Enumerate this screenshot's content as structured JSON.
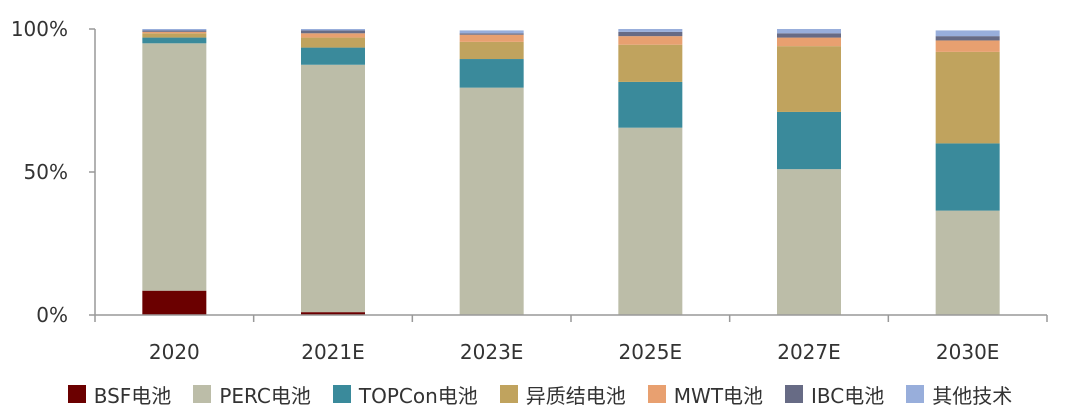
{
  "chart_data": {
    "type": "bar",
    "stacked": true,
    "percent": true,
    "categories": [
      "2020",
      "2021E",
      "2023E",
      "2025E",
      "2027E",
      "2030E"
    ],
    "y_ticks": [
      "0%",
      "50%",
      "100%"
    ],
    "ylim": [
      0,
      100
    ],
    "grid": false,
    "legend_position": "bottom",
    "series": [
      {
        "name": "BSF电池",
        "color": "#6b0000",
        "values": [
          8.5,
          1,
          0,
          0,
          0,
          0
        ]
      },
      {
        "name": "PERC电池",
        "color": "#bcbda8",
        "values": [
          86.5,
          86.5,
          79.5,
          65.5,
          51,
          36.5
        ]
      },
      {
        "name": "TOPCon电池",
        "color": "#3a8a9b",
        "values": [
          2,
          6,
          10,
          16,
          20,
          23.5
        ]
      },
      {
        "name": "异质结电池",
        "color": "#c0a35e",
        "values": [
          1.5,
          3.5,
          6,
          13,
          23,
          32
        ]
      },
      {
        "name": "MWT电池",
        "color": "#e8a070",
        "values": [
          0.5,
          1.5,
          2.5,
          3,
          3,
          4
        ]
      },
      {
        "name": "IBC电池",
        "color": "#676b85",
        "values": [
          0.5,
          1,
          0.5,
          1.5,
          1.5,
          1.5
        ]
      },
      {
        "name": "其他技术",
        "color": "#98aedb",
        "values": [
          0.5,
          0.5,
          1,
          1,
          1.5,
          2
        ]
      }
    ]
  }
}
